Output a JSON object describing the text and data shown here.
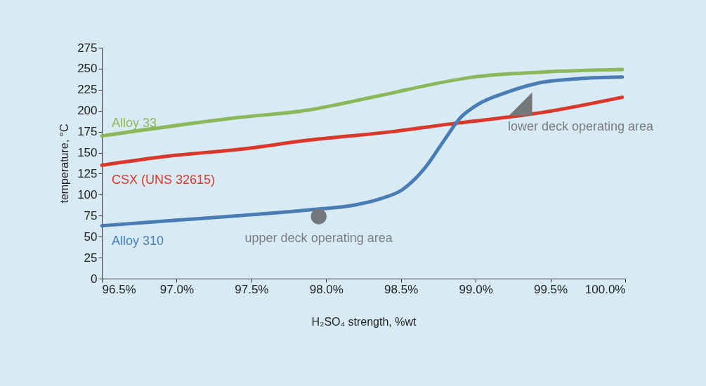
{
  "chart_data": {
    "type": "line",
    "xlabel": "H₂SO₄ strength, %wt",
    "ylabel": "temperature, °C",
    "xlim": [
      96.5,
      100
    ],
    "xticks": [
      {
        "value": 96.5,
        "label": "96.5%"
      },
      {
        "value": 97,
        "label": "97.0%"
      },
      {
        "value": 97.5,
        "label": "97.5%"
      },
      {
        "value": 98,
        "label": "98.0%"
      },
      {
        "value": 98.5,
        "label": "98.5%"
      },
      {
        "value": 99,
        "label": "99.0%"
      },
      {
        "value": 99.5,
        "label": "99.5%"
      },
      {
        "value": 100,
        "label": "100.0%"
      }
    ],
    "ylim": [
      0,
      275
    ],
    "yticks": [
      0,
      25,
      50,
      75,
      100,
      125,
      150,
      175,
      200,
      225,
      250,
      275
    ],
    "series": [
      {
        "name": "Alloy 33",
        "color": "#8cb85c",
        "x": [
          96.5,
          97.42,
          97.89,
          98.12,
          98.44,
          98.67,
          98.98,
          99.45,
          99.98
        ],
        "values": [
          170,
          192,
          201,
          209,
          221,
          230,
          240,
          246,
          249
        ]
      },
      {
        "name": "CSX (UNS 32615)",
        "color": "#d9382a",
        "x": [
          96.5,
          96.95,
          97.42,
          97.89,
          98.44,
          98.82,
          99.45,
          99.98
        ],
        "values": [
          135,
          146,
          154,
          165,
          175,
          184,
          198,
          216
        ]
      },
      {
        "name": "Alloy 310",
        "color": "#4a7db5",
        "x": [
          96.5,
          96.95,
          97.42,
          97.89,
          98.2,
          98.36,
          98.51,
          98.67,
          98.79,
          98.9,
          99.01,
          99.21,
          99.45,
          99.68,
          99.98
        ],
        "values": [
          63,
          69,
          75,
          82,
          88,
          95,
          106,
          134,
          165,
          192,
          207,
          222,
          234,
          238,
          240
        ]
      },
      {
        "type": "scatter",
        "name": "upper deck operating area",
        "marker": "circle",
        "color": "#75787b",
        "x": [
          97.95
        ],
        "values": [
          74
        ]
      },
      {
        "type": "scatter",
        "name": "lower deck operating area",
        "marker": "triangle",
        "color": "#75787b",
        "x": [
          99.3
        ],
        "values": [
          208
        ]
      }
    ]
  }
}
